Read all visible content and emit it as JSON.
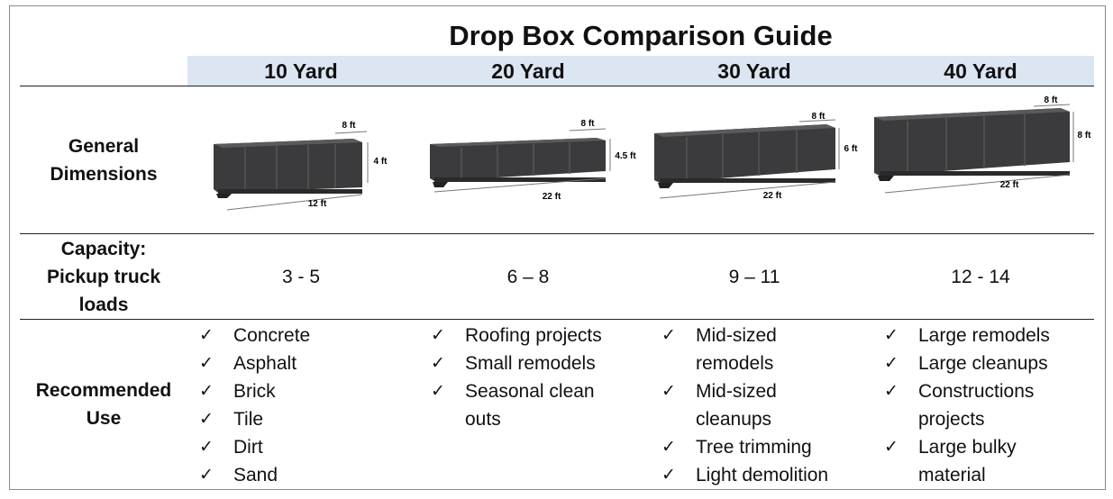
{
  "title": "Drop Box Comparison Guide",
  "columns": [
    {
      "label": "10 Yard",
      "width": "8 ft",
      "height": "4 ft",
      "length": "12 ft",
      "capacity": "3 - 5"
    },
    {
      "label": "20 Yard",
      "width": "8 ft",
      "height": "4.5 ft",
      "length": "22 ft",
      "capacity": "6 – 8"
    },
    {
      "label": "30 Yard",
      "width": "8 ft",
      "height": "6 ft",
      "length": "22 ft",
      "capacity": "9 – 11"
    },
    {
      "label": "40 Yard",
      "width": "8 ft",
      "height": "8 ft",
      "length": "22 ft",
      "capacity": "12 - 14"
    }
  ],
  "rows": {
    "dimensions_label_1": "General",
    "dimensions_label_2": "Dimensions",
    "capacity_label_1": "Capacity:",
    "capacity_label_2": "Pickup truck",
    "capacity_label_3": "loads",
    "use_label_1": "Recommended",
    "use_label_2": "Use"
  },
  "check_glyph": "✓",
  "uses": {
    "c10": [
      "Concrete",
      "Asphalt",
      "Brick",
      "Tile",
      "Dirt",
      "Sand"
    ],
    "c20": [
      "Roofing projects",
      "Small remodels",
      "Seasonal clean",
      "outs"
    ],
    "c30": [
      "Mid-sized",
      "remodels",
      "Mid-sized",
      "cleanups",
      "Tree trimming",
      "Light demolition"
    ],
    "c40": [
      "Large remodels",
      "Large cleanups",
      "Constructions",
      "projects",
      "Large bulky",
      "material"
    ]
  }
}
